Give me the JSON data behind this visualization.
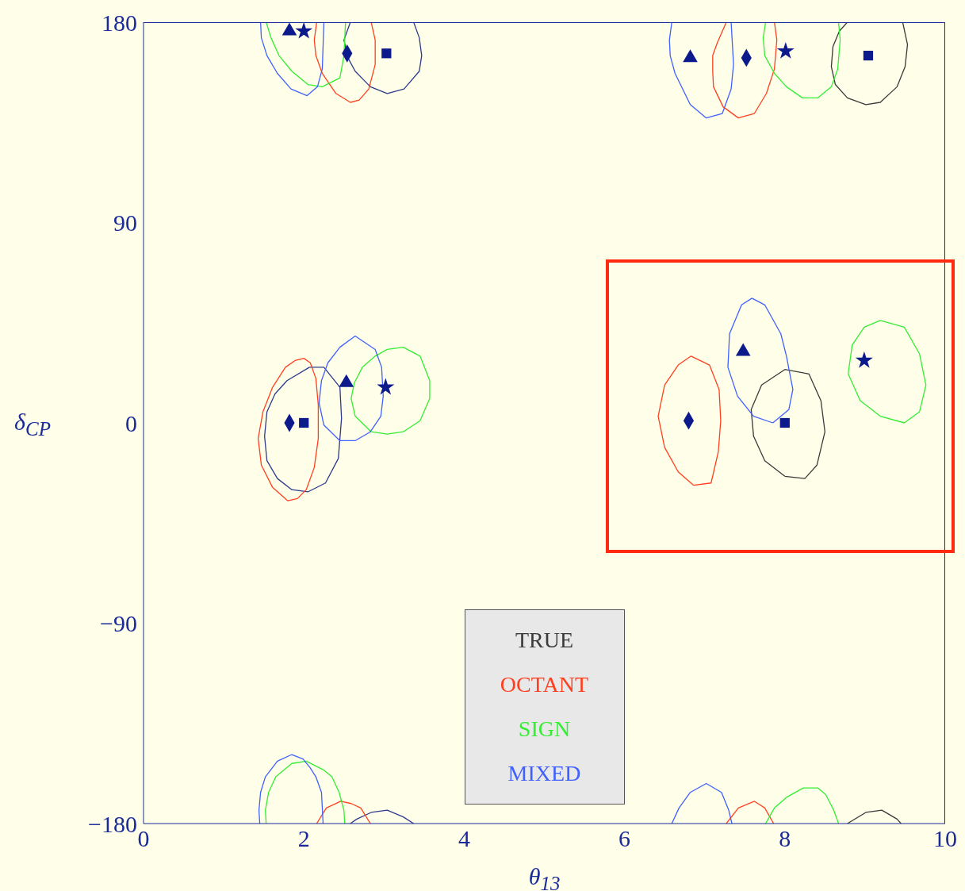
{
  "chart_data": {
    "type": "line",
    "xlabel": "θ$_{13}$",
    "ylabel": "δ$_{CP}$",
    "xlim": [
      0,
      10
    ],
    "ylim": [
      -180,
      180
    ],
    "xticks": [
      0,
      2,
      4,
      6,
      8,
      10
    ],
    "yticks": [
      {
        "value": -180,
        "label": "−180"
      },
      {
        "value": -90,
        "label": "−90"
      },
      0,
      90,
      180
    ],
    "grid": false,
    "legend": "bottom",
    "marker": "none",
    "line_style": "solid",
    "series": [
      {
        "name": "TRUE",
        "color": "#3a3a3a",
        "x": [
          8.0,
          8.3,
          8.45,
          8.5,
          8.4,
          8.25,
          8.0,
          null,
          8.0,
          7.75,
          7.61,
          7.58,
          7.71,
          8.0,
          null,
          8.78,
          8.68,
          8.6,
          8.58,
          8.63,
          8.78,
          9.01,
          9.19,
          9.4,
          9.5,
          9.53,
          9.47,
          null,
          8.78,
          9.01,
          9.21,
          9.4,
          9.45
        ],
        "values": [
          24,
          22,
          10,
          -4,
          -19,
          -25,
          -24,
          null,
          -24,
          -17,
          -6,
          6,
          17,
          24,
          null,
          180,
          176,
          169,
          160,
          152,
          146,
          143,
          144,
          151,
          160,
          170,
          180,
          null,
          -180,
          -175,
          -174,
          -178,
          -180
        ]
      },
      {
        "color": "#2e3a8c",
        "x": [
          2.07,
          2.25,
          2.45,
          2.47,
          2.43,
          2.27,
          2.05,
          null,
          2.05,
          1.85,
          1.67,
          1.54,
          1.51,
          1.54,
          1.64,
          1.79,
          2.07,
          null,
          2.58,
          2.5,
          2.55,
          2.64,
          2.83,
          3.04,
          3.25,
          3.44,
          3.47,
          3.44,
          3.37,
          null,
          2.58,
          2.66,
          2.84,
          3.04,
          3.24,
          3.37
        ],
        "values": [
          25,
          25,
          16,
          2,
          -16,
          -27,
          -31,
          null,
          -31,
          -30,
          -25,
          -17,
          -6,
          5,
          13,
          19,
          25,
          null,
          180,
          172,
          164,
          158,
          151,
          148,
          150,
          158,
          165,
          173,
          180,
          null,
          -180,
          -178,
          -175,
          -174,
          -177,
          -180
        ]
      },
      {
        "name": "OCTANT",
        "color": "#ff4020",
        "x": [
          2.0,
          1.89,
          1.77,
          1.61,
          1.49,
          1.43,
          1.47,
          1.61,
          1.8,
          null,
          1.8,
          1.92,
          2.03,
          2.13,
          2.18,
          2.18,
          2.15,
          2.08,
          2.0,
          null,
          6.83,
          7.06,
          7.18,
          7.2,
          7.17,
          7.08,
          6.86,
          null,
          6.86,
          6.67,
          6.5,
          6.42,
          6.5,
          6.67,
          6.83,
          null,
          2.16,
          2.13,
          2.15,
          2.23,
          2.4,
          2.58,
          2.69,
          2.81,
          2.89,
          2.89,
          2.84,
          null,
          7.27,
          7.16,
          7.1,
          7.1,
          7.11,
          7.23,
          7.42,
          7.62,
          7.77,
          7.87,
          7.9,
          7.87,
          null,
          2.16,
          2.28,
          2.46,
          2.59,
          2.71,
          2.83,
          null,
          7.27,
          7.42,
          7.62,
          7.75,
          7.86
        ],
        "values": [
          29,
          28,
          25,
          16,
          5,
          -7,
          -19,
          -29,
          -35,
          null,
          -35,
          -34,
          -30,
          -20,
          -7,
          8,
          20,
          27,
          29,
          null,
          30,
          26,
          15,
          1,
          -13,
          -27,
          -28,
          null,
          -28,
          -22,
          -11,
          3,
          17,
          26,
          30,
          null,
          180,
          172,
          165,
          157,
          148,
          144,
          145,
          150,
          161,
          172,
          180,
          null,
          180,
          171,
          165,
          158,
          151,
          142,
          137,
          139,
          148,
          159,
          172,
          180,
          null,
          -180,
          -173,
          -170,
          -171,
          -173,
          -180,
          null,
          -180,
          -173,
          -170,
          -173,
          -180
        ]
      },
      {
        "name": "SIGN",
        "color": "#33ee33",
        "x": [
          3.04,
          3.24,
          3.45,
          3.57,
          3.57,
          3.45,
          3.24,
          3.04,
          null,
          3.04,
          2.84,
          2.64,
          2.59,
          2.63,
          2.73,
          2.89,
          3.04,
          null,
          9.19,
          9.49,
          9.68,
          9.76,
          9.68,
          9.49,
          null,
          9.49,
          9.19,
          8.94,
          8.79,
          8.84,
          8.99,
          9.19,
          null,
          1.53,
          1.59,
          1.69,
          1.85,
          2.05,
          2.23,
          2.45,
          2.5,
          2.52,
          null,
          7.76,
          7.73,
          7.75,
          7.87,
          8.02,
          8.22,
          8.41,
          8.58,
          8.66,
          8.69,
          8.67,
          null,
          1.53,
          1.52,
          1.56,
          1.65,
          1.85,
          2.03,
          2.25,
          2.35,
          2.44,
          2.5,
          2.51,
          null,
          7.76,
          7.87,
          8.03,
          8.23,
          8.41,
          8.51,
          8.61,
          8.67
        ],
        "values": [
          33,
          34,
          30,
          19,
          11,
          1,
          -4,
          -5,
          null,
          -5,
          -4,
          3,
          11,
          18,
          25,
          30,
          33,
          null,
          46,
          43,
          31,
          17,
          5,
          0,
          null,
          0,
          3,
          10,
          22,
          35,
          43,
          46,
          null,
          180,
          173,
          165,
          158,
          152,
          151,
          155,
          165,
          180,
          null,
          180,
          173,
          165,
          157,
          151,
          146,
          146,
          151,
          159,
          172,
          180,
          null,
          -180,
          -174,
          -166,
          -159,
          -153,
          -152,
          -156,
          -159,
          -166,
          -174,
          -180,
          null,
          -180,
          -173,
          -168,
          -164,
          -164,
          -167,
          -174,
          -180
        ]
      },
      {
        "name": "MIXED",
        "color": "#4060ff",
        "x": [
          2.64,
          2.89,
          2.97,
          2.99,
          2.96,
          2.83,
          2.64,
          null,
          2.64,
          2.45,
          2.25,
          2.19,
          2.22,
          2.3,
          2.45,
          2.64,
          null,
          7.59,
          7.75,
          7.95,
          8.02,
          8.1,
          8.05,
          7.85,
          null,
          7.85,
          7.61,
          7.41,
          7.29,
          7.31,
          7.46,
          7.59,
          null,
          1.46,
          1.47,
          1.54,
          1.67,
          1.84,
          2.04,
          2.17,
          2.23,
          2.25,
          null,
          6.59,
          6.56,
          6.57,
          6.63,
          6.82,
          7.02,
          7.22,
          7.33,
          7.36,
          7.33,
          null,
          1.45,
          1.44,
          1.46,
          1.52,
          1.67,
          1.85,
          1.99,
          2.08,
          2.15,
          2.22,
          2.24,
          null,
          6.59,
          6.68,
          6.82,
          7.02,
          7.21,
          7.3,
          7.34
        ],
        "values": [
          39,
          33,
          25,
          12,
          3,
          -4,
          -8,
          null,
          -8,
          -8,
          -1,
          9,
          19,
          27,
          34,
          39,
          null,
          56,
          53,
          40,
          30,
          15,
          6,
          0,
          null,
          0,
          3,
          12,
          25,
          40,
          53,
          56,
          null,
          180,
          173,
          165,
          157,
          150,
          147,
          151,
          159,
          180,
          null,
          180,
          172,
          165,
          157,
          143,
          137,
          139,
          150,
          161,
          180,
          null,
          -180,
          -174,
          -166,
          -159,
          -152,
          -149,
          -151,
          -155,
          -159,
          -166,
          -180,
          null,
          -180,
          -173,
          -166,
          -162,
          -166,
          -174,
          -180
        ]
      },
      {
        "color": "#0d1a8c",
        "type": "scatter",
        "marker": "diamond",
        "x": [
          1.82,
          6.8,
          2.54,
          7.52
        ],
        "values": [
          0,
          1,
          166,
          164
        ]
      },
      {
        "color": "#0d1a8c",
        "type": "scatter",
        "marker": "square",
        "x": [
          2.0,
          8.0,
          3.03,
          9.04
        ],
        "values": [
          0,
          0,
          166,
          165
        ]
      },
      {
        "color": "#0d1a8c",
        "type": "scatter",
        "marker": "triangle",
        "x": [
          2.53,
          7.48,
          1.82,
          6.82
        ],
        "values": [
          18,
          32,
          176,
          164
        ]
      },
      {
        "color": "#0d1a8c",
        "type": "scatter",
        "marker": "star",
        "x": [
          3.02,
          8.99,
          2.0,
          8.01
        ],
        "values": [
          16,
          28,
          176,
          167
        ]
      }
    ]
  }
}
